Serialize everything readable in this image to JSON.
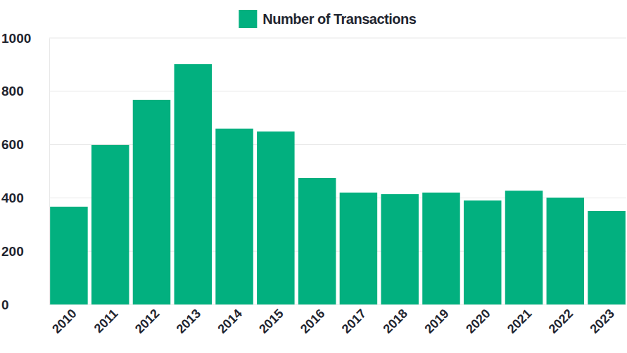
{
  "chart_data": {
    "type": "bar",
    "categories": [
      "2010",
      "2011",
      "2012",
      "2013",
      "2014",
      "2015",
      "2016",
      "2017",
      "2018",
      "2019",
      "2020",
      "2021",
      "2022",
      "2023"
    ],
    "series": [
      {
        "name": "Number of Transactions",
        "color": "#02b07f",
        "values": [
          367,
          599,
          768,
          902,
          660,
          649,
          475,
          420,
          414,
          420,
          390,
          427,
          401,
          351
        ]
      }
    ],
    "ylim": [
      0,
      1000
    ],
    "yticks": [
      0,
      200,
      400,
      600,
      800,
      1000
    ],
    "grid": true,
    "legend": "top"
  }
}
